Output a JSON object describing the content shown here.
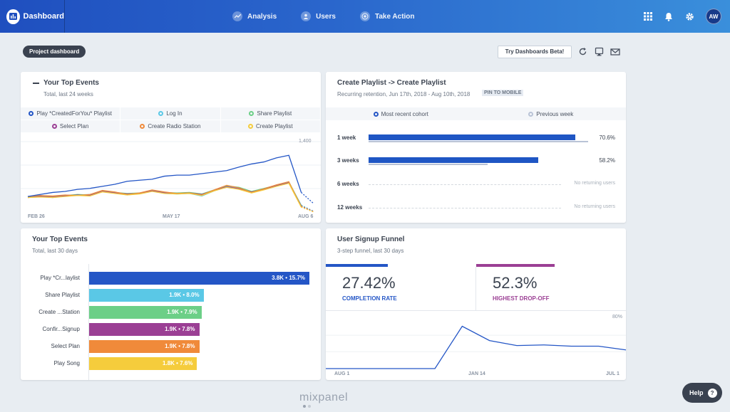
{
  "nav": {
    "brand": "Dashboard",
    "links": [
      {
        "label": "Analysis",
        "icon": "analysis-icon"
      },
      {
        "label": "Users",
        "icon": "users-icon"
      },
      {
        "label": "Take Action",
        "icon": "target-icon"
      }
    ],
    "right_icons": [
      "apps-grid-icon",
      "bell-icon",
      "gear-icon"
    ],
    "avatar": "AW"
  },
  "toolbar": {
    "project_label": "Project dashboard",
    "beta_button": "Try Dashboards Beta!",
    "icons": [
      "refresh-icon",
      "tv-icon",
      "email-icon"
    ]
  },
  "top_events_line": {
    "title": "Your Top Events",
    "subtitle": "Total, last 24 weeks",
    "legend": [
      {
        "label": "Play *CreatedForYou* Playlist",
        "color": "#2456c6"
      },
      {
        "label": "Log In",
        "color": "#5ac8e6"
      },
      {
        "label": "Share Playlist",
        "color": "#6ccf87"
      },
      {
        "label": "Select Plan",
        "color": "#9b3f94"
      },
      {
        "label": "Create Radio Station",
        "color": "#f08a3a"
      },
      {
        "label": "Create Playlist",
        "color": "#f5cc3c"
      }
    ],
    "x_ticks": [
      "FEB 26",
      "MAY 17",
      "AUG 6"
    ],
    "y_tick": "1,400"
  },
  "retention": {
    "title": "Create Playlist -> Create Playlist",
    "subtitle": "Recurring retention, Jun 17th, 2018 - Aug 10th, 2018",
    "pin_label": "PIN TO MOBILE",
    "legend": [
      {
        "label": "Most recent cohort",
        "color": "#2456c6"
      },
      {
        "label": "Previous week",
        "color": "#b9c3d6"
      }
    ],
    "rows": [
      {
        "label": "1 week",
        "value": "70.6%",
        "recent": 0.938,
        "previous": 0.99
      },
      {
        "label": "3 weeks",
        "value": "58.2%",
        "recent": 0.773,
        "previous": 0.54
      },
      {
        "label": "6 weeks",
        "none": "No returning users"
      },
      {
        "label": "12 weeks",
        "none": "No returning users"
      }
    ]
  },
  "top_events_bar": {
    "title": "Your Top Events",
    "subtitle": "Total, last 30 days",
    "rows": [
      {
        "label": "Play *Cr...laylist",
        "value": "3.8K • 15.7%",
        "fraction": 1.0,
        "color": "#2456c6"
      },
      {
        "label": "Share Playlist",
        "value": "1.9K • 8.0%",
        "fraction": 0.52,
        "color": "#5ac8e6"
      },
      {
        "label": "Create ...Station",
        "value": "1.9K • 7.9%",
        "fraction": 0.51,
        "color": "#6ccf87"
      },
      {
        "label": "Confir...Signup",
        "value": "1.9K • 7.8%",
        "fraction": 0.5,
        "color": "#9b3f94"
      },
      {
        "label": "Select Plan",
        "value": "1.9K • 7.8%",
        "fraction": 0.5,
        "color": "#f08a3a"
      },
      {
        "label": "Play Song",
        "value": "1.8K • 7.6%",
        "fraction": 0.49,
        "color": "#f5cc3c"
      }
    ]
  },
  "funnel": {
    "title": "User Signup Funnel",
    "subtitle": "3-step funnel, last 30 days",
    "completion": {
      "value": "27.42%",
      "label": "COMPLETION RATE",
      "color": "#2456c6"
    },
    "dropoff": {
      "value": "52.3%",
      "label": "HIGHEST DROP-OFF",
      "color": "#9b3f94"
    },
    "x_ticks": [
      "AUG 1",
      "JAN 14",
      "JUL 1"
    ],
    "y_tick": "80%"
  },
  "footer": {
    "wordmark": "mixpanel",
    "help": "Help",
    "help_icon": "?"
  },
  "chart_data": [
    {
      "type": "line",
      "title": "Your Top Events",
      "x": [
        "FEB 26",
        "",
        "",
        "",
        "",
        "",
        "",
        "",
        "",
        "",
        "",
        "MAY 17",
        "",
        "",
        "",
        "",
        "",
        "",
        "",
        "",
        "",
        "",
        "",
        "AUG 6"
      ],
      "ylim": [
        0,
        1400
      ],
      "series": [
        {
          "name": "Play *CreatedForYou* Playlist",
          "values": [
            320,
            360,
            400,
            420,
            460,
            480,
            520,
            560,
            620,
            640,
            660,
            720,
            740,
            740,
            770,
            800,
            830,
            900,
            960,
            1000,
            1080,
            1130,
            400,
            180
          ]
        },
        {
          "name": "Log In",
          "values": [
            320,
            340,
            300,
            330,
            350,
            360,
            420,
            390,
            350,
            380,
            430,
            380,
            370,
            380,
            330,
            430,
            520,
            480,
            400,
            470,
            520,
            600,
            150,
            30
          ]
        },
        {
          "name": "Share Playlist",
          "values": [
            310,
            330,
            320,
            340,
            360,
            350,
            430,
            400,
            380,
            390,
            440,
            400,
            390,
            400,
            370,
            450,
            530,
            500,
            420,
            480,
            540,
            610,
            140,
            20
          ]
        },
        {
          "name": "Select Plan",
          "values": [
            300,
            320,
            310,
            330,
            350,
            340,
            420,
            390,
            370,
            380,
            430,
            390,
            380,
            390,
            360,
            440,
            510,
            470,
            410,
            460,
            530,
            590,
            130,
            25
          ]
        },
        {
          "name": "Create Radio Station",
          "values": [
            320,
            340,
            330,
            350,
            340,
            360,
            440,
            410,
            360,
            390,
            450,
            410,
            380,
            390,
            350,
            450,
            540,
            490,
            400,
            470,
            550,
            610,
            120,
            20
          ]
        },
        {
          "name": "Create Playlist",
          "values": [
            300,
            310,
            300,
            320,
            340,
            330,
            410,
            380,
            350,
            370,
            420,
            380,
            370,
            380,
            340,
            430,
            500,
            460,
            390,
            450,
            520,
            580,
            110,
            15
          ]
        }
      ]
    },
    {
      "type": "bar",
      "title": "Your Top Events",
      "categories": [
        "Play *Cr...laylist",
        "Share Playlist",
        "Create ...Station",
        "Confir...Signup",
        "Select Plan",
        "Play Song"
      ],
      "values": [
        3800,
        1900,
        1900,
        1900,
        1900,
        1800
      ]
    },
    {
      "type": "line",
      "title": "User Signup Funnel",
      "x": [
        "AUG 1",
        "",
        "",
        "",
        "",
        "JAN 14",
        "",
        "",
        "",
        "",
        "",
        "JUL 1"
      ],
      "ylim": [
        0,
        80
      ],
      "series": [
        {
          "values": [
            0,
            0,
            0,
            0,
            0,
            68,
            45,
            37,
            38,
            36,
            36,
            30
          ]
        }
      ]
    }
  ]
}
